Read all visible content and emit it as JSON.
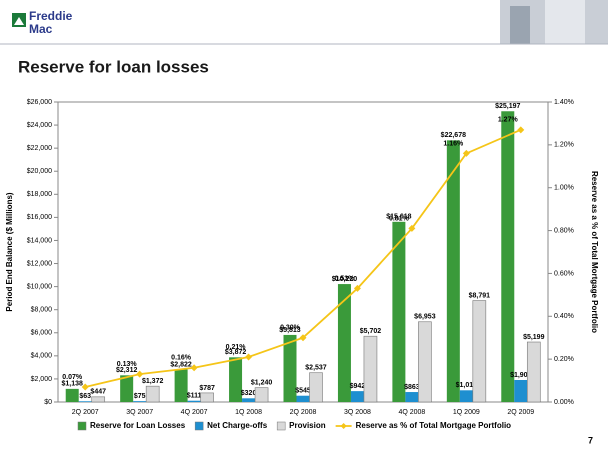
{
  "header": {
    "logo_top": "Freddie",
    "logo_bottom": "Mac",
    "title": "Reserve for loan losses"
  },
  "page_number": "7",
  "chart_data": {
    "type": "bar",
    "ylabel": "Period End Balance ($ Millions)",
    "y2label": "Reserve as a % of Total Mortgage Portfolio",
    "categories": [
      "2Q 2007",
      "3Q 2007",
      "4Q 2007",
      "1Q 2008",
      "2Q 2008",
      "3Q 2008",
      "4Q 2008",
      "1Q 2009",
      "2Q 2009"
    ],
    "series": [
      {
        "name": "Reserve for Loan Losses",
        "color": "#3a9a3a",
        "values": [
          1138,
          2312,
          2822,
          3872,
          5813,
          10220,
          15618,
          22678,
          25197
        ],
        "value_labels": [
          "$1,138",
          "$2,312",
          "$2,822",
          "$3,872",
          "$5,813",
          "$10,220",
          "$15,618",
          "$22,678",
          "$25,197"
        ]
      },
      {
        "name": "Net Charge-offs",
        "color": "#1e8fd0",
        "values": [
          63,
          75,
          111,
          320,
          545,
          942,
          863,
          1014,
          1907
        ],
        "value_labels": [
          "$63",
          "$75",
          "$111",
          "$320",
          "$545",
          "$942",
          "$863",
          "$1,014",
          "$1,907"
        ]
      },
      {
        "name": "Provision",
        "color": "#d9d9d9",
        "values": [
          447,
          1372,
          787,
          1240,
          2537,
          5702,
          6953,
          8791,
          5199
        ],
        "value_labels": [
          "$447",
          "$1,372",
          "$787",
          "$1,240",
          "$2,537",
          "$5,702",
          "$6,953",
          "$8,791",
          "$5,199"
        ]
      },
      {
        "name": "Reserve as % of Total Mortgage Portfolio",
        "color": "#f5c518",
        "type": "line",
        "axis": "y2",
        "values": [
          0.07,
          0.13,
          0.16,
          0.21,
          0.3,
          0.53,
          0.81,
          1.16,
          1.27
        ],
        "value_labels": [
          "0.07%",
          "0.13%",
          "0.16%",
          "0.21%",
          "0.30%",
          "0.53%",
          "0.81%",
          "1.16%",
          "1.27%"
        ]
      }
    ],
    "ylim": [
      0,
      26000
    ],
    "yticks": [
      {
        "value": 0,
        "label": "$0"
      },
      {
        "value": 2000,
        "label": "$2,000"
      },
      {
        "value": 4000,
        "label": "$4,000"
      },
      {
        "value": 6000,
        "label": "$6,000"
      },
      {
        "value": 8000,
        "label": "$8,000"
      },
      {
        "value": 10000,
        "label": "$10,000"
      },
      {
        "value": 12000,
        "label": "$12,000"
      },
      {
        "value": 14000,
        "label": "$14,000"
      },
      {
        "value": 16000,
        "label": "$16,000"
      },
      {
        "value": 18000,
        "label": "$18,000"
      },
      {
        "value": 20000,
        "label": "$20,000"
      },
      {
        "value": 22000,
        "label": "$22,000"
      },
      {
        "value": 24000,
        "label": "$24,000"
      },
      {
        "value": 26000,
        "label": "$26,000"
      }
    ],
    "y2lim": [
      0,
      1.4
    ],
    "y2ticks": [
      {
        "value": 0,
        "label": "0.00%"
      },
      {
        "value": 0.2,
        "label": "0.20%"
      },
      {
        "value": 0.4,
        "label": "0.40%"
      },
      {
        "value": 0.6,
        "label": "0.60%"
      },
      {
        "value": 0.8,
        "label": "0.80%"
      },
      {
        "value": 1.0,
        "label": "1.00%"
      },
      {
        "value": 1.2,
        "label": "1.20%"
      },
      {
        "value": 1.4,
        "label": "1.40%"
      }
    ],
    "legend": "bottom"
  }
}
